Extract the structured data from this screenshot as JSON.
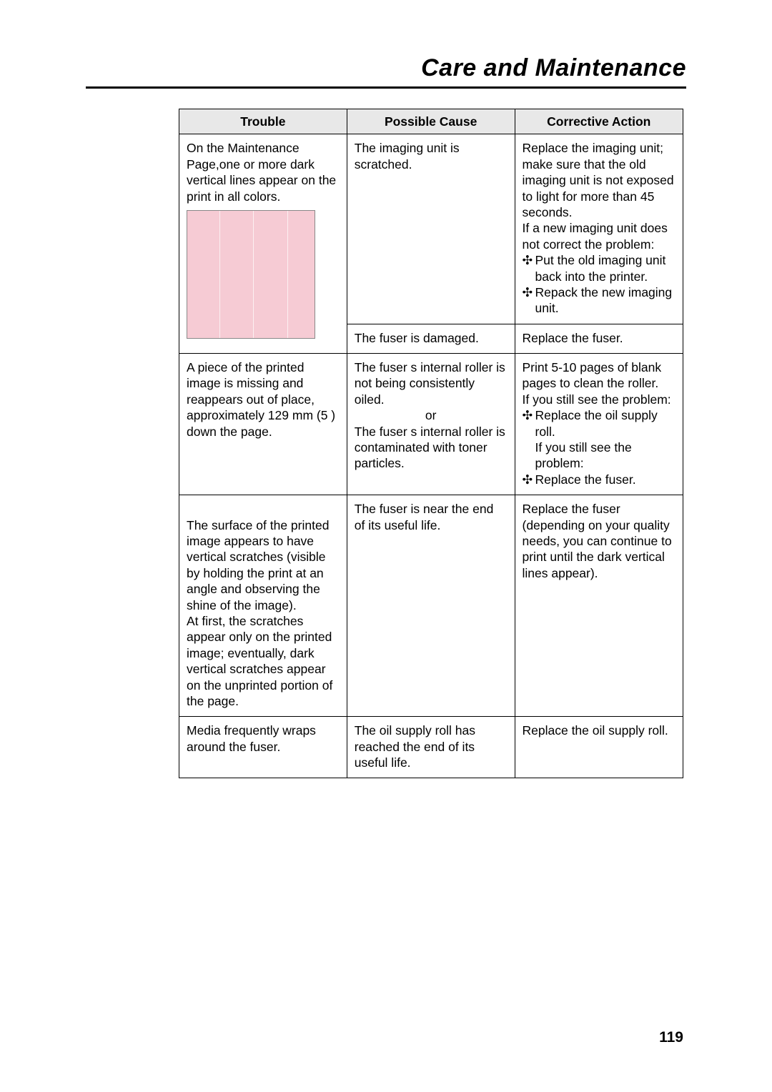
{
  "page": {
    "title": "Care and Maintenance",
    "number": "119"
  },
  "colors": {
    "text": "#000000",
    "background": "#ffffff",
    "header_bg": "#e8e8e8",
    "border": "#000000",
    "illus_bg": "#f6cbd4",
    "illus_line": "rgba(255,255,255,0.7)",
    "illus_border": "#888888"
  },
  "table": {
    "headers": {
      "trouble": "Trouble",
      "cause": "Possible Cause",
      "action": "Corrective Action"
    },
    "rows": [
      {
        "trouble": "On the Maintenance Page,one or more dark vertical lines appear on the print in all colors.",
        "has_illustration": true,
        "subrows": [
          {
            "cause": "The imaging unit is scratched.",
            "action_lines": [
              "Replace the imaging unit; make sure that the old imaging unit is not exposed to light for more than 45 seconds.",
              "If a new imaging unit does not correct the problem:"
            ],
            "action_bullets": [
              "Put the old imaging unit back into the printer.",
              "Repack the new imaging unit."
            ]
          },
          {
            "cause": "The fuser is damaged.",
            "action_lines": [
              "Replace the fuser."
            ],
            "action_bullets": []
          }
        ]
      },
      {
        "trouble": "A piece of the printed image is missing and reappears out of place, approximately 129 mm (5 ) down the page.",
        "cause_lines": [
          "The fuser s internal roller is not being consistently oiled.",
          "or",
          "The fuser s internal roller is contaminated with toner particles."
        ],
        "action_lines_pre": [
          "Print 5-10 pages of blank pages to clean the roller.",
          "If you still see the problem:"
        ],
        "action_bullet1": "Replace the oil supply roll.",
        "action_lines_mid": [
          "If you still see the problem:"
        ],
        "action_bullet2": "Replace the fuser."
      },
      {
        "trouble": "The surface of the printed image appears to have vertical scratches (visible by holding the print at an angle and observing the  shine  of the image).\nAt first, the scratches appear only on the printed image; eventually, dark vertical scratches appear on the unprinted portion of the page.",
        "cause": "The fuser is near the end of its useful life.",
        "action": "Replace the fuser (depending on your quality needs, you can continue to print until the dark vertical lines appear)."
      },
      {
        "trouble": "Media frequently wraps around the fuser.",
        "cause": "The oil supply roll has reached the end of its useful life.",
        "action": "Replace the oil supply roll."
      }
    ],
    "bullet_mark": "✣"
  },
  "typography": {
    "title_fontsize": 34,
    "body_fontsize": 17.5,
    "pagenum_fontsize": 21
  }
}
